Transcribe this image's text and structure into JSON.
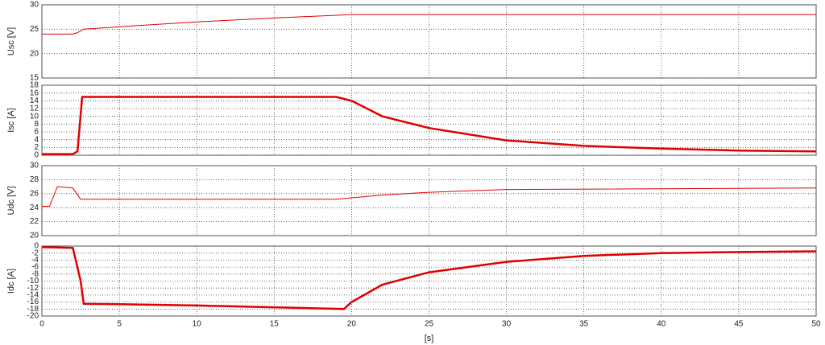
{
  "chart_data": [
    {
      "type": "line",
      "ylabel": "Usc [V]",
      "color": "#e00000",
      "grid": true,
      "x": [
        0,
        2,
        2.3,
        2.7,
        5,
        10,
        15,
        20,
        25,
        50
      ],
      "values": [
        24,
        24,
        24.3,
        25,
        25.5,
        26.5,
        27.3,
        28,
        28,
        28
      ],
      "xlim": [
        0,
        50
      ],
      "xticks": [
        0,
        5,
        10,
        15,
        20,
        25,
        30,
        35,
        40,
        45,
        50
      ],
      "ylim": [
        15,
        30
      ],
      "yticks": [
        15,
        20,
        25,
        30
      ]
    },
    {
      "type": "line",
      "ylabel": "Isc [A]",
      "color": "#e00000",
      "grid": true,
      "x": [
        0,
        2,
        2.3,
        2.6,
        19,
        20,
        22,
        25,
        30,
        35,
        40,
        45,
        50
      ],
      "values": [
        0.3,
        0.3,
        1,
        15,
        15,
        14,
        10,
        7,
        3.8,
        2.4,
        1.7,
        1.2,
        1.0
      ],
      "xlim": [
        0,
        50
      ],
      "xticks": [
        0,
        5,
        10,
        15,
        20,
        25,
        30,
        35,
        40,
        45,
        50
      ],
      "ylim": [
        0,
        18
      ],
      "yticks": [
        0,
        2,
        4,
        6,
        8,
        10,
        12,
        14,
        16,
        18
      ]
    },
    {
      "type": "line",
      "ylabel": "Udc [V]",
      "color": "#e00000",
      "grid": true,
      "x": [
        0,
        0.5,
        1,
        2,
        2.5,
        19,
        22,
        25,
        30,
        50
      ],
      "values": [
        24.2,
        24.2,
        27,
        26.8,
        25.2,
        25.2,
        25.8,
        26.2,
        26.6,
        26.8
      ],
      "xlim": [
        0,
        50
      ],
      "xticks": [
        0,
        5,
        10,
        15,
        20,
        25,
        30,
        35,
        40,
        45,
        50
      ],
      "ylim": [
        20,
        30
      ],
      "yticks": [
        20,
        22,
        24,
        26,
        28,
        30
      ]
    },
    {
      "type": "line",
      "ylabel": "Idc [A]",
      "xlabel": "[s]",
      "color": "#e00000",
      "grid": true,
      "x": [
        0,
        2,
        2.5,
        2.7,
        5,
        10,
        15,
        19.5,
        20,
        22,
        25,
        30,
        35,
        40,
        45,
        50
      ],
      "values": [
        -0.3,
        -0.5,
        -10,
        -16.5,
        -16.6,
        -17,
        -17.5,
        -18,
        -16,
        -11,
        -7.5,
        -4.5,
        -2.8,
        -2,
        -1.7,
        -1.5
      ],
      "xlim": [
        0,
        50
      ],
      "xticks": [
        0,
        5,
        10,
        15,
        20,
        25,
        30,
        35,
        40,
        45,
        50
      ],
      "ylim": [
        -20,
        0
      ],
      "yticks": [
        -20,
        -18,
        -16,
        -14,
        -12,
        -10,
        -8,
        -6,
        -4,
        -2,
        0
      ]
    }
  ]
}
